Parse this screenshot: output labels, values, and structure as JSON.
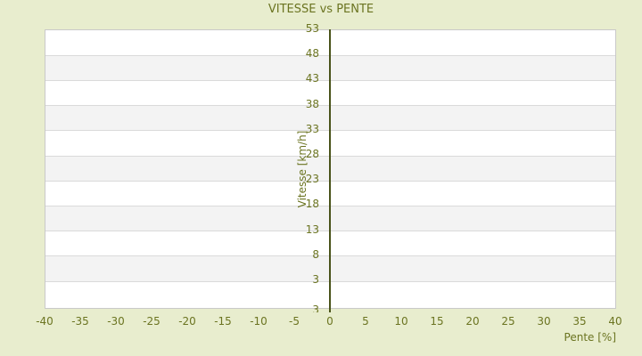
{
  "title": "VITESSE vs PENTE",
  "y_axis": {
    "title": "Vitesse [km/h]",
    "ticks": [
      "53",
      "48",
      "43",
      "38",
      "33",
      "28",
      "23",
      "18",
      "13",
      "8",
      "3"
    ],
    "bottom_edge_label": "3"
  },
  "x_axis": {
    "title": "Pente [%]",
    "ticks": [
      "-40",
      "-35",
      "-30",
      "-25",
      "-20",
      "-15",
      "-10",
      "-5",
      "0",
      "5",
      "10",
      "15",
      "20",
      "25",
      "30",
      "35",
      "40"
    ]
  },
  "colors": {
    "background": "#e8edce",
    "text": "#6b7421",
    "zero_axis_line": "#49531a",
    "gridline": "#dadada",
    "plot_border": "#c9c9c9",
    "band_light": "#ffffff",
    "band_dark": "#f3f3f3"
  },
  "chart_data": {
    "type": "scatter",
    "title": "VITESSE vs PENTE",
    "xlabel": "Pente [%]",
    "ylabel": "Vitesse [km/h]",
    "xlim": [
      -40,
      40
    ],
    "ylim": [
      -2.7,
      53
    ],
    "x_ticks": [
      -40,
      -35,
      -30,
      -25,
      -20,
      -15,
      -10,
      -5,
      0,
      5,
      10,
      15,
      20,
      25,
      30,
      35,
      40
    ],
    "y_ticks": [
      3,
      8,
      13,
      18,
      23,
      28,
      33,
      38,
      43,
      48,
      53
    ],
    "series": [],
    "grid": "horizontal gridlines with alternating white/grey row bands",
    "legend": "none",
    "annotations": "vertical dark olive axis line drawn at x = 0; no data points plotted"
  }
}
